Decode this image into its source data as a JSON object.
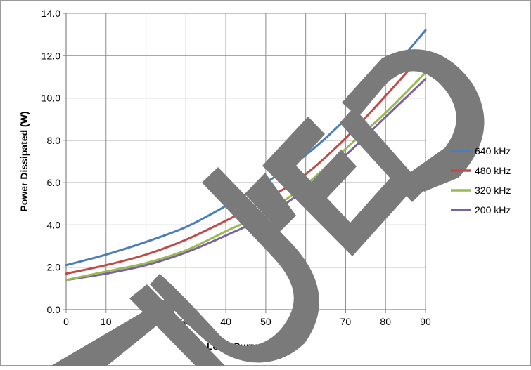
{
  "chart_data": {
    "type": "line",
    "xlabel": "Load Current (A)",
    "ylabel": "Power Dissipated  (W)",
    "xlim": [
      0,
      90
    ],
    "ylim": [
      0,
      14
    ],
    "x_ticks": [
      0,
      10,
      20,
      30,
      40,
      50,
      60,
      70,
      80,
      90
    ],
    "x_tick_labels": [
      "0",
      "10",
      "20",
      "30",
      "40",
      "50",
      "60",
      "70",
      "80",
      "90"
    ],
    "y_ticks": [
      0,
      2,
      4,
      6,
      8,
      10,
      12,
      14
    ],
    "y_tick_labels": [
      "0.0",
      "2.0",
      "4.0",
      "6.0",
      "8.0",
      "10.0",
      "12.0",
      "14.0"
    ],
    "grid": true,
    "legend_position": "right",
    "x": [
      0,
      10,
      20,
      30,
      40,
      50,
      60,
      70,
      80,
      90
    ],
    "series": [
      {
        "name": "640 kHz",
        "color": "#4a7ebb",
        "values": [
          2.1,
          2.6,
          3.2,
          3.9,
          4.9,
          6.0,
          7.3,
          9.0,
          11.0,
          13.2
        ]
      },
      {
        "name": "480 kHz",
        "color": "#be4b48",
        "values": [
          1.7,
          2.1,
          2.6,
          3.3,
          4.2,
          5.2,
          6.4,
          8.1,
          10.1,
          12.2
        ]
      },
      {
        "name": "320 kHz",
        "color": "#98b954",
        "values": [
          1.4,
          1.8,
          2.2,
          2.8,
          3.7,
          4.6,
          5.9,
          7.6,
          9.3,
          11.2
        ]
      },
      {
        "name": "200 kHz",
        "color": "#7d60a0",
        "values": [
          1.4,
          1.7,
          2.1,
          2.7,
          3.5,
          4.4,
          5.7,
          7.3,
          9.1,
          10.9
        ]
      }
    ]
  },
  "colors": {
    "grid": "#8c8c8c",
    "axis": "#868686",
    "text": "#000000",
    "watermark": "#7a7a7a",
    "frame": "#9a9a9a"
  }
}
